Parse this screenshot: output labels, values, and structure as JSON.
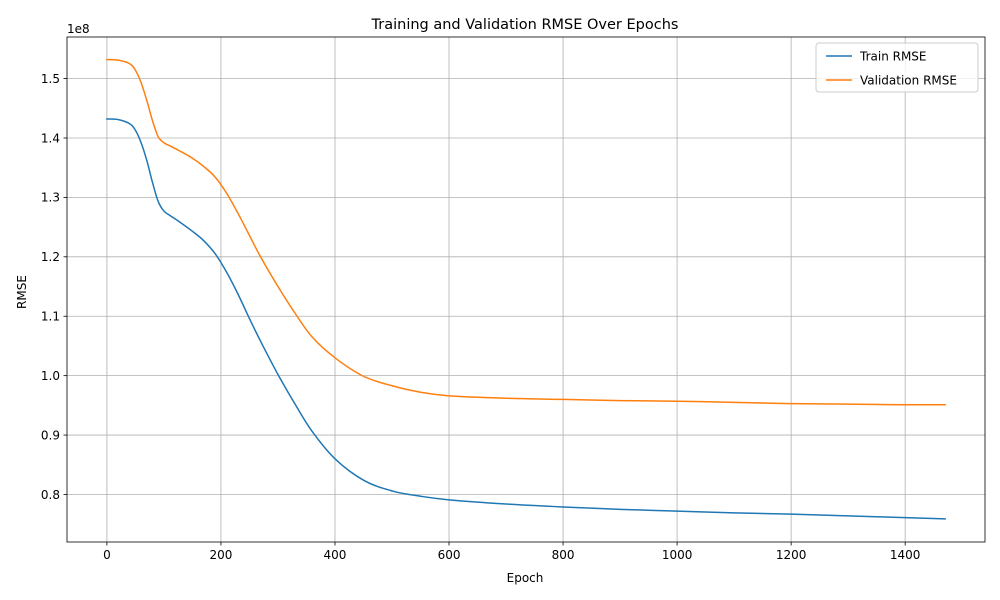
{
  "chart_data": {
    "type": "line",
    "title": "Training and Validation RMSE Over Epochs",
    "xlabel": "Epoch",
    "ylabel": "RMSE",
    "y_offset_label": "1e8",
    "xlim": [
      -70,
      1540
    ],
    "ylim": [
      0.72,
      1.57
    ],
    "x_ticks": [
      0,
      200,
      400,
      600,
      800,
      1000,
      1200,
      1400
    ],
    "x_tick_labels": [
      "0",
      "200",
      "400",
      "600",
      "800",
      "1000",
      "1200",
      "1400"
    ],
    "y_ticks": [
      0.8,
      0.9,
      1.0,
      1.1,
      1.2,
      1.3,
      1.4,
      1.5
    ],
    "y_tick_labels": [
      "0.8",
      "0.9",
      "1.0",
      "1.1",
      "1.2",
      "1.3",
      "1.4",
      "1.5"
    ],
    "grid": true,
    "legend_position": "top-right",
    "series": [
      {
        "name": "Train RMSE",
        "color": "#1f77b4",
        "x": [
          0,
          20,
          40,
          50,
          60,
          70,
          80,
          90,
          100,
          110,
          130,
          150,
          170,
          190,
          210,
          230,
          250,
          270,
          300,
          330,
          360,
          400,
          450,
          500,
          550,
          600,
          700,
          800,
          900,
          1000,
          1100,
          1200,
          1300,
          1400,
          1470
        ],
        "y": [
          1.432,
          1.431,
          1.424,
          1.413,
          1.392,
          1.362,
          1.325,
          1.293,
          1.277,
          1.27,
          1.257,
          1.243,
          1.227,
          1.205,
          1.174,
          1.137,
          1.096,
          1.057,
          1.002,
          0.952,
          0.906,
          0.86,
          0.824,
          0.806,
          0.797,
          0.791,
          0.784,
          0.779,
          0.775,
          0.772,
          0.769,
          0.767,
          0.764,
          0.761,
          0.759
        ]
      },
      {
        "name": "Validation RMSE",
        "color": "#ff7f0e",
        "x": [
          0,
          20,
          40,
          50,
          60,
          70,
          80,
          90,
          100,
          110,
          130,
          150,
          170,
          190,
          210,
          230,
          250,
          270,
          300,
          330,
          360,
          400,
          450,
          500,
          550,
          600,
          700,
          800,
          900,
          1000,
          1100,
          1200,
          1300,
          1400,
          1470
        ],
        "y": [
          1.532,
          1.531,
          1.525,
          1.514,
          1.493,
          1.463,
          1.429,
          1.402,
          1.392,
          1.387,
          1.377,
          1.366,
          1.352,
          1.334,
          1.307,
          1.273,
          1.236,
          1.199,
          1.15,
          1.105,
          1.065,
          1.03,
          0.999,
          0.983,
          0.972,
          0.966,
          0.962,
          0.96,
          0.958,
          0.957,
          0.955,
          0.953,
          0.952,
          0.951,
          0.951
        ]
      }
    ]
  }
}
